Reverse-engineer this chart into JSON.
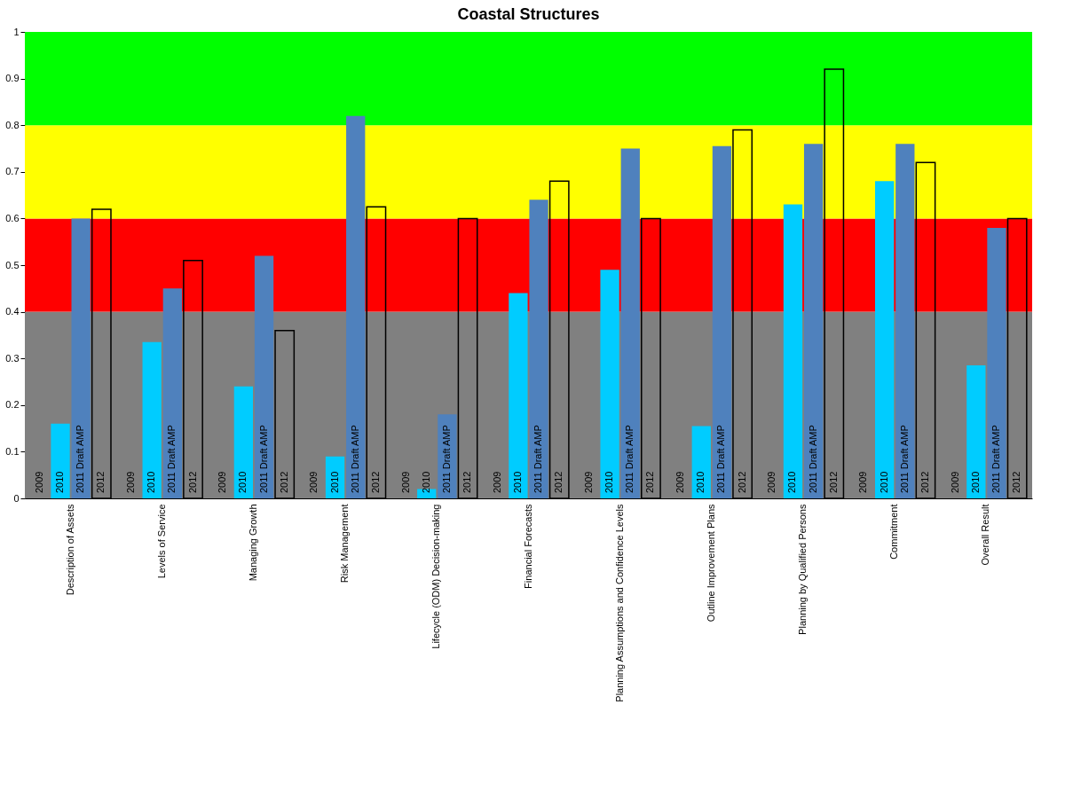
{
  "chart_data": {
    "type": "bar",
    "title": "Coastal Structures",
    "categories": [
      "Description of Assets",
      "Levels of Service",
      "Managing Growth",
      "Risk Management",
      "Lifecycle (ODM) Decision-making",
      "Financial Forecasts",
      "Planning Assumptions and Confidence Levels",
      "Outline Improvement Plans",
      "Planning by Qualified Persons",
      "Commitment",
      "Overall Result"
    ],
    "series": [
      {
        "name": "2009",
        "values": [
          0,
          0,
          0,
          0,
          0,
          0,
          0,
          0,
          0,
          0,
          0
        ]
      },
      {
        "name": "2010",
        "color": "#00ccff",
        "values": [
          0.16,
          0.335,
          0.24,
          0.09,
          0.02,
          0.44,
          0.49,
          0.155,
          0.63,
          0.68,
          0.285
        ]
      },
      {
        "name": "2011 Draft AMP",
        "color": "#4f81bd",
        "values": [
          0.6,
          0.45,
          0.52,
          0.82,
          0.18,
          0.64,
          0.75,
          0.755,
          0.76,
          0.76,
          0.58
        ]
      },
      {
        "name": "2012",
        "color": null,
        "values": [
          0.62,
          0.51,
          0.36,
          0.625,
          0.6,
          0.68,
          0.6,
          0.79,
          0.92,
          0.72,
          0.6
        ]
      }
    ],
    "ylim": [
      0,
      1
    ],
    "yticks": [
      0,
      0.1,
      0.2,
      0.3,
      0.4,
      0.5,
      0.6,
      0.7,
      0.8,
      0.9,
      1
    ],
    "bands": [
      {
        "axis": "y",
        "from": 0,
        "to": 0.4,
        "color": "#808080"
      },
      {
        "axis": "y",
        "from": 0.4,
        "to": 0.6,
        "color": "#ff0000"
      },
      {
        "axis": "y",
        "from": 0.6,
        "to": 0.8,
        "color": "#ffff00"
      },
      {
        "axis": "y",
        "from": 0.8,
        "to": 1,
        "color": "#00ff00"
      }
    ],
    "grid": false,
    "legend": false
  }
}
